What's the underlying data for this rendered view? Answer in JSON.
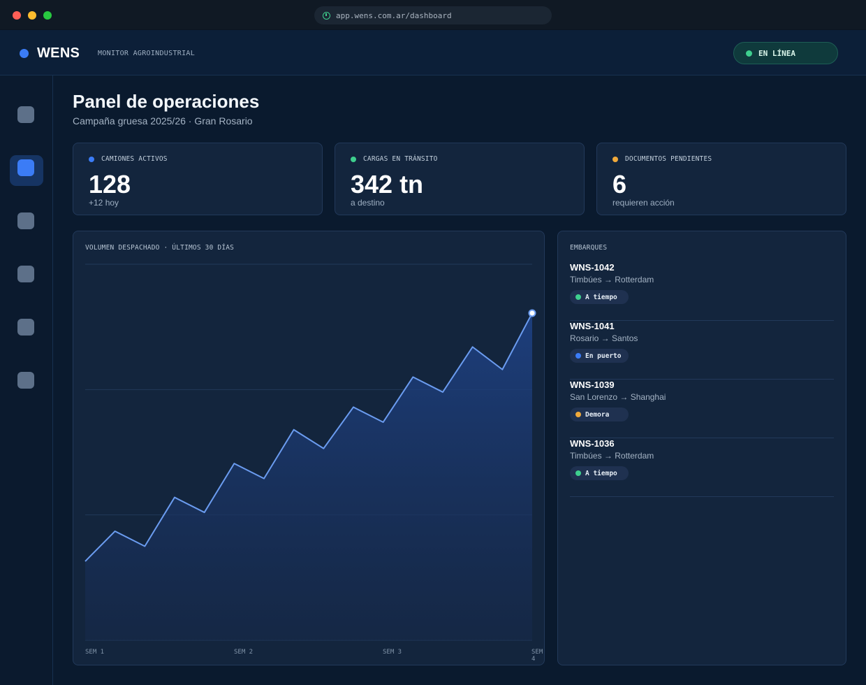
{
  "browser": {
    "url": "app.wens.com.ar/dashboard"
  },
  "header": {
    "brand": "WENS",
    "subtitle": "MONITOR AGROINDUSTRIAL",
    "status_label": "EN LÍNEA",
    "status_color": "#3ecf8e"
  },
  "sidebar": {
    "items": [
      {
        "name": "nav-item-1",
        "active": false
      },
      {
        "name": "nav-item-2",
        "active": true
      },
      {
        "name": "nav-item-3",
        "active": false
      },
      {
        "name": "nav-item-4",
        "active": false
      },
      {
        "name": "nav-item-5",
        "active": false
      },
      {
        "name": "nav-item-6",
        "active": false
      }
    ]
  },
  "page": {
    "title": "Panel de operaciones",
    "subtitle": "Campaña gruesa 2025/26 · Gran Rosario"
  },
  "kpis": [
    {
      "label": "CAMIONES ACTIVOS",
      "value": "128",
      "note": "+12 hoy",
      "color": "#3b7cf6"
    },
    {
      "label": "CARGAS EN TRÁNSITO",
      "value": "342 tn",
      "note": "a destino",
      "color": "#3ecf8e"
    },
    {
      "label": "DOCUMENTOS PENDIENTES",
      "value": "6",
      "note": "requieren acción",
      "color": "#f0a93b"
    }
  ],
  "chart": {
    "label": "VOLUMEN DESPACHADO · ÚLTIMOS 30 DÍAS",
    "x_ticks": [
      "SEM 1",
      "SEM 2",
      "SEM 3",
      "SEM 4"
    ]
  },
  "chart_data": {
    "type": "area",
    "title": "VOLUMEN DESPACHADO · ÚLTIMOS 30 DÍAS",
    "x": [
      0,
      1,
      2,
      3,
      4,
      5,
      6,
      7,
      8,
      9,
      10,
      11,
      12,
      13,
      14,
      15
    ],
    "values": [
      21,
      29,
      25,
      38,
      34,
      47,
      43,
      56,
      51,
      62,
      58,
      70,
      66,
      78,
      72,
      87
    ],
    "ylim": [
      0,
      100
    ],
    "grid": true,
    "line_color": "#6b9cf0",
    "fill_color": "#1c3c78"
  },
  "shipments": {
    "label": "EMBARQUES",
    "items": [
      {
        "id": "WNS-1042",
        "route": "Timbúes → Rotterdam",
        "status": "A tiempo",
        "color": "#3ecf8e"
      },
      {
        "id": "WNS-1041",
        "route": "Rosario → Santos",
        "status": "En puerto",
        "color": "#3b7cf6"
      },
      {
        "id": "WNS-1039",
        "route": "San Lorenzo → Shanghai",
        "status": "Demora",
        "color": "#f0a93b"
      },
      {
        "id": "WNS-1036",
        "route": "Timbúes → Rotterdam",
        "status": "A tiempo",
        "color": "#3ecf8e"
      }
    ]
  }
}
